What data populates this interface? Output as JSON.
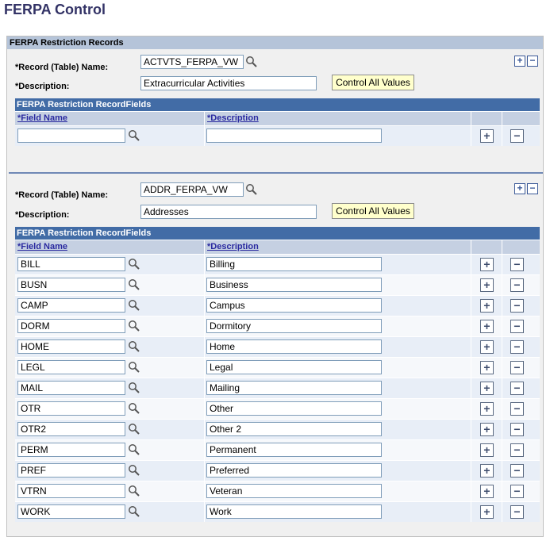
{
  "page_title": "FERPA Control",
  "outer_header": "FERPA Restriction Records",
  "labels": {
    "record_name": "*Record (Table) Name:",
    "description": "*Description:",
    "grid_title": "FERPA Restriction RecordFields",
    "col_field": "*Field Name",
    "col_desc": "*Description",
    "control_all": "Control All Values"
  },
  "records": [
    {
      "record_name": "ACTVTS_FERPA_VW",
      "description": "Extracurricular Activities",
      "fields": [
        {
          "field": "",
          "desc": ""
        }
      ]
    },
    {
      "record_name": "ADDR_FERPA_VW",
      "description": "Addresses",
      "fields": [
        {
          "field": "BILL",
          "desc": "Billing"
        },
        {
          "field": "BUSN",
          "desc": "Business"
        },
        {
          "field": "CAMP",
          "desc": "Campus"
        },
        {
          "field": "DORM",
          "desc": "Dormitory"
        },
        {
          "field": "HOME",
          "desc": "Home"
        },
        {
          "field": "LEGL",
          "desc": "Legal"
        },
        {
          "field": "MAIL",
          "desc": "Mailing"
        },
        {
          "field": "OTR",
          "desc": "Other"
        },
        {
          "field": "OTR2",
          "desc": "Other 2"
        },
        {
          "field": "PERM",
          "desc": "Permanent"
        },
        {
          "field": "PREF",
          "desc": "Preferred"
        },
        {
          "field": "VTRN",
          "desc": "Veteran"
        },
        {
          "field": "WORK",
          "desc": "Work"
        }
      ]
    }
  ],
  "icons": {
    "lookup": "magnifier-icon",
    "add": "plus-icon",
    "remove": "minus-icon"
  },
  "colors": {
    "title": "#333366",
    "grid_header": "#426ca6",
    "column_header": "#c5d0e2",
    "button": "#ffffcc"
  }
}
